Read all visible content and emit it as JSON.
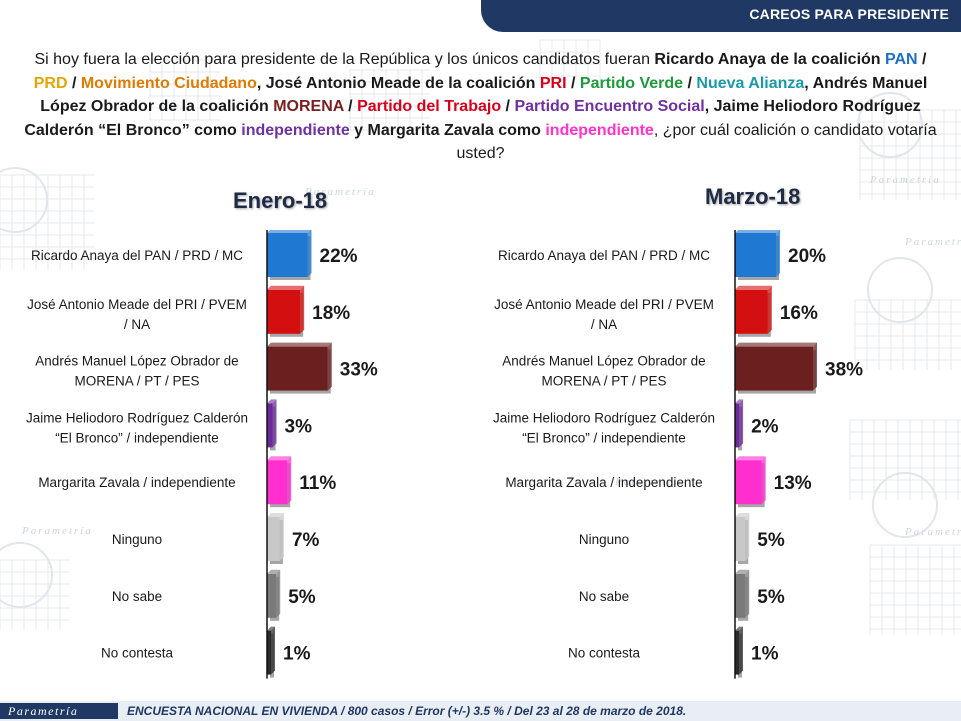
{
  "header": {
    "title": "CAREOS PARA PRESIDENTE"
  },
  "question": {
    "segments": [
      {
        "text": "Si hoy fuera la elección para presidente de la República y los únicos candidatos fueran ",
        "color": "#1a1a1a",
        "bold": false
      },
      {
        "text": "Ricardo Anaya de la coalición ",
        "color": "#1a1a1a",
        "bold": true
      },
      {
        "text": "PAN",
        "color": "#1f6fc5",
        "bold": true
      },
      {
        "text": " / ",
        "color": "#1a1a1a",
        "bold": true
      },
      {
        "text": "PRD",
        "color": "#e0a800",
        "bold": true
      },
      {
        "text": " / ",
        "color": "#1a1a1a",
        "bold": true
      },
      {
        "text": "Movimiento Ciudadano",
        "color": "#e07b00",
        "bold": true
      },
      {
        "text": ", José Antonio Meade de la coalición ",
        "color": "#1a1a1a",
        "bold": true
      },
      {
        "text": "PRI",
        "color": "#d9001b",
        "bold": true
      },
      {
        "text": " / ",
        "color": "#1a1a1a",
        "bold": true
      },
      {
        "text": "Partido Verde",
        "color": "#1d9a3a",
        "bold": true
      },
      {
        "text": " / ",
        "color": "#1a1a1a",
        "bold": true
      },
      {
        "text": "Nueva Alianza",
        "color": "#1a9aa8",
        "bold": true
      },
      {
        "text": ", Andrés Manuel López Obrador de la coalición ",
        "color": "#1a1a1a",
        "bold": true
      },
      {
        "text": "MORENA",
        "color": "#7a1e1e",
        "bold": true
      },
      {
        "text": " / ",
        "color": "#1a1a1a",
        "bold": true
      },
      {
        "text": "Partido del Trabajo",
        "color": "#d9001b",
        "bold": true
      },
      {
        "text": " / ",
        "color": "#1a1a1a",
        "bold": true
      },
      {
        "text": "Partido Encuentro Social",
        "color": "#7030a0",
        "bold": true
      },
      {
        "text": ", Jaime Heliodoro Rodríguez Calderón “El Bronco” como ",
        "color": "#1a1a1a",
        "bold": true
      },
      {
        "text": "independiente",
        "color": "#7030a0",
        "bold": true
      },
      {
        "text": " y Margarita Zavala como ",
        "color": "#1a1a1a",
        "bold": true
      },
      {
        "text": "independiente",
        "color": "#ff33cc",
        "bold": true
      },
      {
        "text": ", ¿por cuál coalición o candidato votaría usted?",
        "color": "#1a1a1a",
        "bold": false
      }
    ]
  },
  "footer": {
    "logo_text": "Parametría",
    "note": "ENCUESTA NACIONAL EN VIVIENDA / 800 casos / Error (+/-) 3.5 % / Del 23 al 28 de marzo de 2018."
  },
  "watermark": {
    "text": "Parametría"
  },
  "chart_data": [
    {
      "type": "bar",
      "orientation": "horizontal",
      "title": "Enero-18",
      "categories": [
        "Ricardo Anaya del PAN / PRD / MC",
        "José Antonio Meade del PRI / PVEM / NA",
        "Andrés Manuel López Obrador de MORENA / PT / PES",
        "Jaime Heliodoro Rodríguez Calderón “El Bronco” / independiente",
        "Margarita Zavala / independiente",
        "Ninguno",
        "No sabe",
        "No contesta"
      ],
      "label_lines": [
        [
          "Ricardo Anaya del PAN / PRD / MC"
        ],
        [
          "José Antonio Meade del PRI / PVEM",
          "/ NA"
        ],
        [
          "Andrés Manuel López Obrador de",
          "MORENA / PT / PES"
        ],
        [
          "Jaime Heliodoro Rodríguez Calderón",
          "“El Bronco” / independiente"
        ],
        [
          "Margarita Zavala / independiente"
        ],
        [
          "Ninguno"
        ],
        [
          "No sabe"
        ],
        [
          "No contesta"
        ]
      ],
      "values": [
        22,
        18,
        33,
        3,
        11,
        7,
        5,
        1
      ],
      "value_labels": [
        "22%",
        "18%",
        "33%",
        "3%",
        "11%",
        "7%",
        "5%",
        "1%"
      ],
      "colors": [
        "#1f78d1",
        "#d40f0f",
        "#6b1f1f",
        "#6a2a9a",
        "#ff2fcf",
        "#c8c8c8",
        "#7a7a7a",
        "#2a2a2a"
      ]
    },
    {
      "type": "bar",
      "orientation": "horizontal",
      "title": "Marzo-18",
      "categories": [
        "Ricardo Anaya del PAN / PRD / MC",
        "José Antonio Meade del PRI / PVEM / NA",
        "Andrés Manuel López Obrador de MORENA / PT / PES",
        "Jaime Heliodoro Rodríguez Calderón “El Bronco” / independiente",
        "Margarita Zavala / independiente",
        "Ninguno",
        "No sabe",
        "No contesta"
      ],
      "label_lines": [
        [
          "Ricardo Anaya del PAN / PRD / MC"
        ],
        [
          "José Antonio Meade del PRI / PVEM",
          "/ NA"
        ],
        [
          "Andrés Manuel López Obrador de",
          "MORENA / PT / PES"
        ],
        [
          "Jaime Heliodoro Rodríguez Calderón",
          "“El Bronco” / independiente"
        ],
        [
          "Margarita Zavala / independiente"
        ],
        [
          "Ninguno"
        ],
        [
          "No sabe"
        ],
        [
          "No contesta"
        ]
      ],
      "values": [
        20,
        16,
        38,
        2,
        13,
        5,
        5,
        1
      ],
      "value_labels": [
        "20%",
        "16%",
        "38%",
        "2%",
        "13%",
        "5%",
        "5%",
        "1%"
      ],
      "colors": [
        "#1f78d1",
        "#d40f0f",
        "#6b1f1f",
        "#6a2a9a",
        "#ff2fcf",
        "#c8c8c8",
        "#7a7a7a",
        "#2a2a2a"
      ]
    }
  ]
}
